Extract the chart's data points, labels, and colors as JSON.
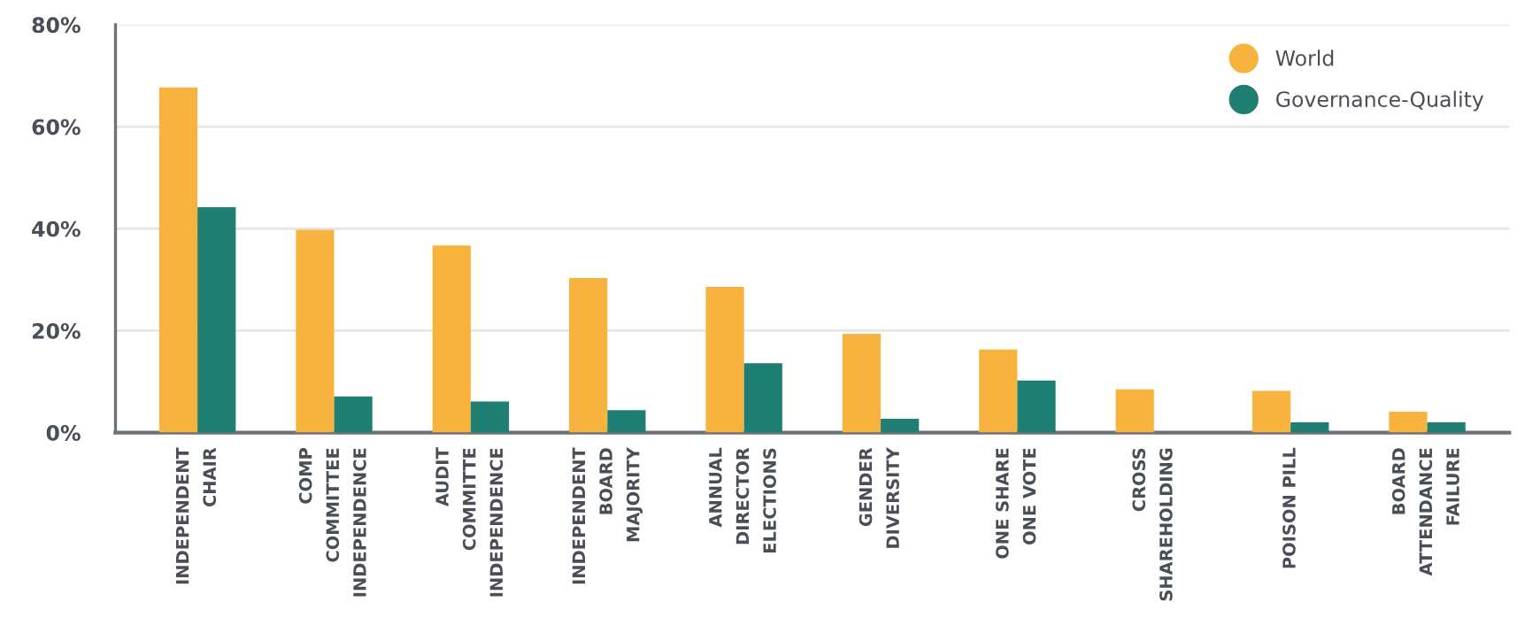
{
  "chart_data": {
    "type": "bar",
    "categories": [
      "INDEPENDENT\nCHAIR",
      "COMP\nCOMMITTEE\nINDEPENDENCE",
      "AUDIT\nCOMMITTE\nINDEPENDENCE",
      "INDEPENDENT\nBOARD\nMAJORITY",
      "ANNUAL\nDIRECTOR\nELECTIONS",
      "GENDER\nDIVERSITY",
      "ONE SHARE\nONE VOTE",
      "CROSS\nSHAREHOLDING",
      "POISON PILL",
      "BOARD\nATTENDANCE\nFAILURE"
    ],
    "series": [
      {
        "name": "World",
        "color": "#f8b33f",
        "values": [
          67.7,
          39.8,
          36.7,
          30.3,
          28.6,
          19.4,
          16.3,
          8.5,
          8.2,
          4.1
        ]
      },
      {
        "name": "Governance-Quality",
        "color": "#1f7f73",
        "values": [
          44.2,
          7.1,
          6.1,
          4.4,
          13.6,
          2.7,
          10.2,
          0,
          2.0,
          2.0
        ]
      }
    ],
    "ylim": [
      0,
      80
    ],
    "yticks": [
      {
        "value": 0,
        "label": "0%"
      },
      {
        "value": 20,
        "label": "20%"
      },
      {
        "value": 40,
        "label": "40%"
      },
      {
        "value": 60,
        "label": "60%"
      },
      {
        "value": 80,
        "label": "80%"
      }
    ],
    "grid": "y",
    "legend": "top right"
  }
}
